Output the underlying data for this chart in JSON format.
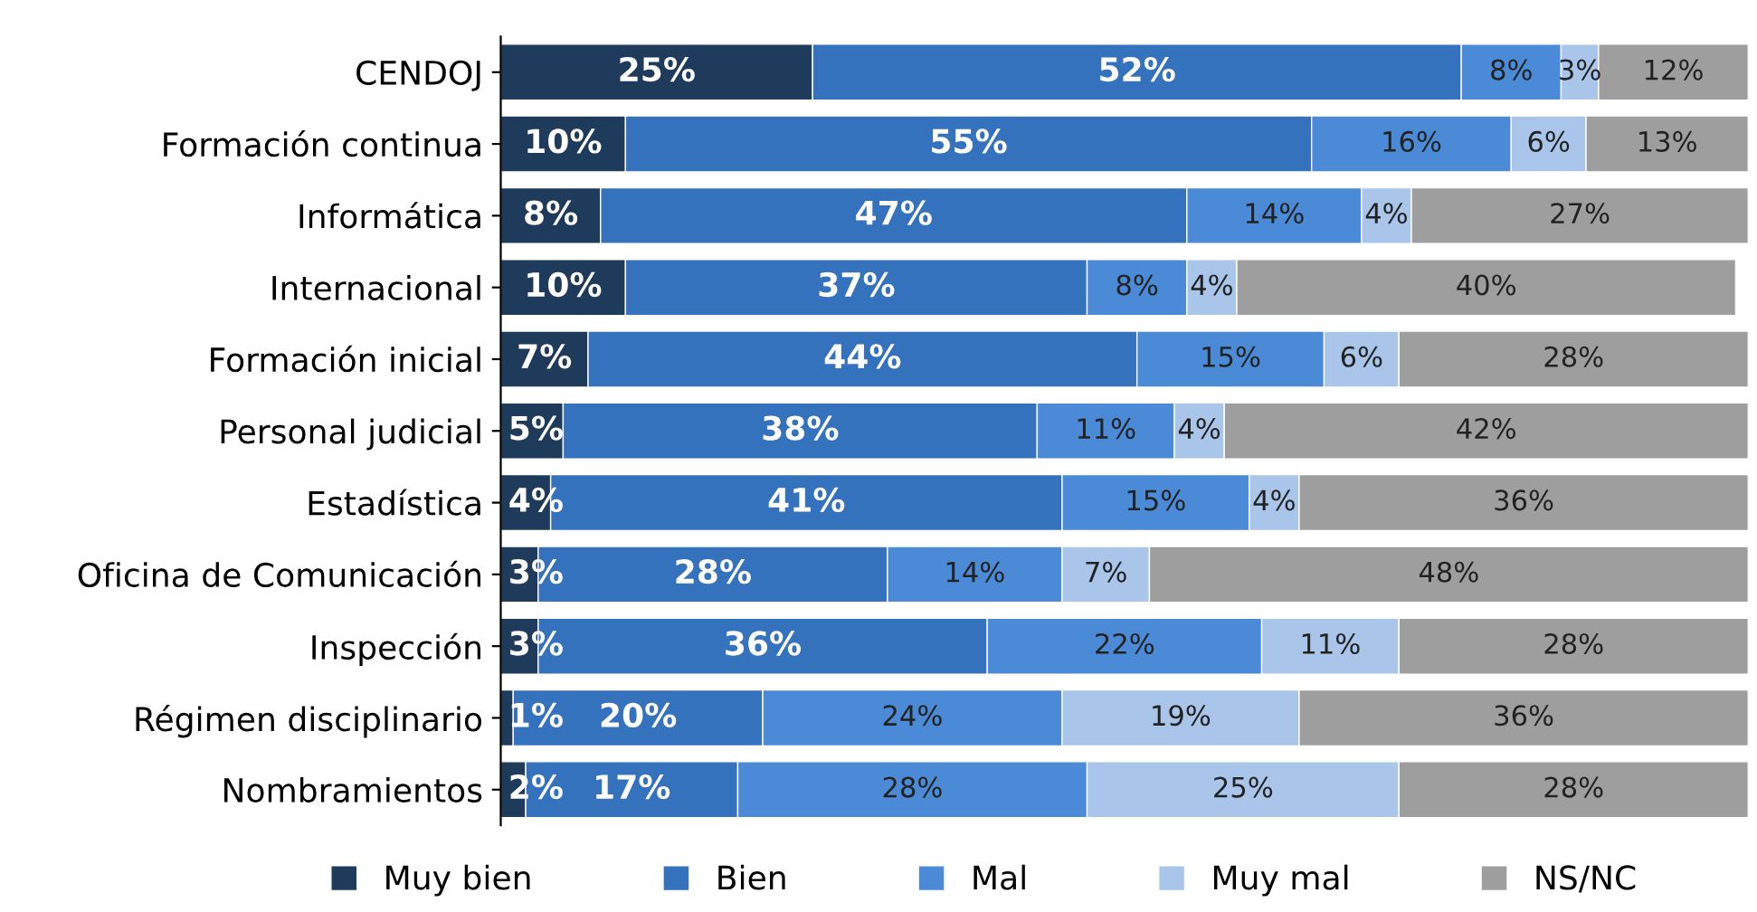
{
  "chart_data": {
    "type": "bar",
    "orientation": "horizontal",
    "stacked": true,
    "legend": "bottom",
    "grid": false,
    "categories": [
      "CENDOJ",
      "Formación continua",
      "Informática",
      "Internacional",
      "Formación inicial",
      "Personal judicial",
      "Estadística",
      "Oficina de Comunicación",
      "Inspección",
      "Régimen disciplinario",
      "Nombramientos"
    ],
    "series": [
      {
        "name": "Muy bien",
        "color": "#1f3b5c",
        "values": [
          25,
          10,
          8,
          10,
          7,
          5,
          4,
          3,
          3,
          1,
          2
        ],
        "value_labels": [
          "25%",
          "10%",
          "8%",
          "10%",
          "7%",
          "5%",
          "4%",
          "3%",
          "3%",
          "1%",
          "2%"
        ]
      },
      {
        "name": "Bien",
        "color": "#3572bd",
        "values": [
          52,
          55,
          47,
          37,
          44,
          38,
          41,
          28,
          36,
          20,
          17
        ],
        "value_labels": [
          "52%",
          "55%",
          "47%",
          "37%",
          "44%",
          "38%",
          "41%",
          "28%",
          "36%",
          "20%",
          "17%"
        ]
      },
      {
        "name": "Mal",
        "color": "#4a8ad6",
        "values": [
          8,
          16,
          14,
          8,
          15,
          11,
          15,
          14,
          22,
          24,
          28
        ],
        "value_labels": [
          "8%",
          "16%",
          "14%",
          "8%",
          "15%",
          "11%",
          "15%",
          "14%",
          "22%",
          "24%",
          "28%"
        ]
      },
      {
        "name": "Muy mal",
        "color": "#a9c5ea",
        "values": [
          3,
          6,
          4,
          4,
          6,
          4,
          4,
          7,
          11,
          19,
          25
        ],
        "value_labels": [
          "3%",
          "6%",
          "4%",
          "4%",
          "6%",
          "4%",
          "4%",
          "7%",
          "11%",
          "19%",
          "25%"
        ]
      },
      {
        "name": "NS/NC",
        "color": "#9e9e9e",
        "values": [
          12,
          13,
          27,
          40,
          28,
          42,
          36,
          48,
          28,
          36,
          28
        ],
        "value_labels": [
          "12%",
          "13%",
          "27%",
          "40%",
          "28%",
          "42%",
          "36%",
          "48%",
          "28%",
          "36%",
          "28%"
        ]
      }
    ]
  }
}
